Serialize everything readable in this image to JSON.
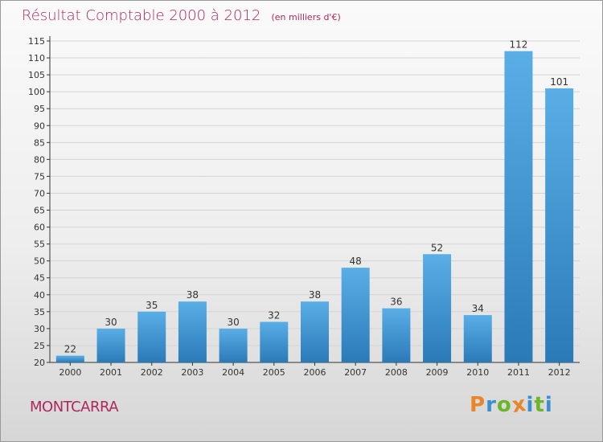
{
  "chart_data": {
    "type": "bar",
    "title": "Résultat Comptable 2000 à 2012",
    "subtitle": "(en milliers d'€)",
    "categories": [
      "2000",
      "2001",
      "2002",
      "2003",
      "2004",
      "2005",
      "2006",
      "2007",
      "2008",
      "2009",
      "2010",
      "2011",
      "2012"
    ],
    "values": [
      22,
      30,
      35,
      38,
      30,
      32,
      38,
      48,
      36,
      52,
      34,
      112,
      101
    ],
    "ylim": [
      20,
      115
    ],
    "yticks": [
      20,
      25,
      30,
      35,
      40,
      45,
      50,
      55,
      60,
      65,
      70,
      75,
      80,
      85,
      90,
      95,
      100,
      105,
      110,
      115
    ],
    "grid": true,
    "xlabel": "",
    "ylabel": "",
    "bar_color_light": "#5aaee6",
    "bar_color_dark": "#2a7ab8"
  },
  "location": "MONTCARRA",
  "brand": {
    "letters": [
      "P",
      "r",
      "o",
      "x",
      "i",
      "t",
      "i"
    ],
    "colors": [
      "#e8862a",
      "#3a8fd0",
      "#6bb52a",
      "#e8862a",
      "#3a8fd0",
      "#6bb52a",
      "#3a8fd0"
    ]
  },
  "colors": {
    "title": "#b0265d",
    "grid": "#d4d4d4",
    "axis": "#333333"
  }
}
